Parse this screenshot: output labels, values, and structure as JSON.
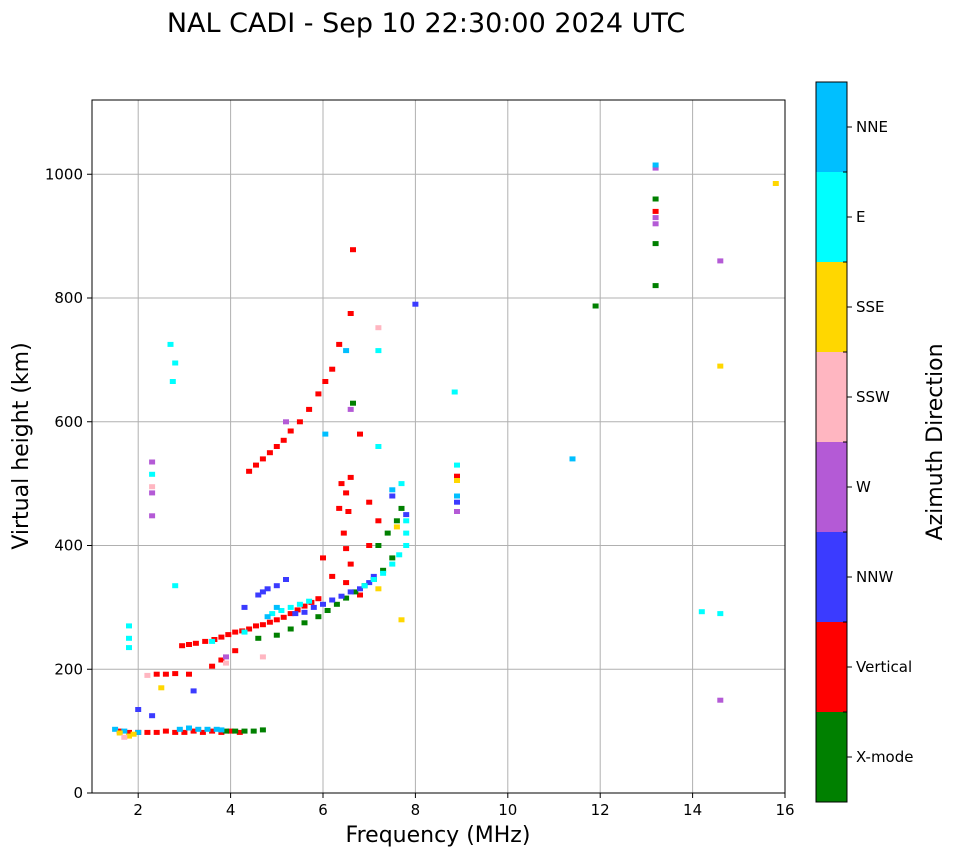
{
  "chart_data": {
    "type": "scatter",
    "title": "NAL CADI - Sep 10 22:30:00 2024 UTC",
    "xlabel": "Frequency (MHz)",
    "ylabel": "Virtual height (km)",
    "xlim": [
      1,
      16
    ],
    "ylim": [
      0,
      1120
    ],
    "xticks": [
      2,
      4,
      6,
      8,
      10,
      12,
      14,
      16
    ],
    "yticks": [
      0,
      200,
      400,
      600,
      800,
      1000
    ],
    "grid": true,
    "colorbar": {
      "title": "Azimuth Direction",
      "categories": [
        {
          "name": "X-mode",
          "color": "#008000"
        },
        {
          "name": "Vertical",
          "color": "#ff0000"
        },
        {
          "name": "NNW",
          "color": "#3b3bff"
        },
        {
          "name": "W",
          "color": "#b45ad6"
        },
        {
          "name": "SSW",
          "color": "#ffb6c1"
        },
        {
          "name": "SSE",
          "color": "#ffd700"
        },
        {
          "name": "E",
          "color": "#00ffff"
        },
        {
          "name": "NNE",
          "color": "#00bfff"
        }
      ]
    },
    "series": [
      {
        "name": "Vertical",
        "points": [
          [
            1.6,
            100
          ],
          [
            1.8,
            98
          ],
          [
            2.0,
            98
          ],
          [
            2.2,
            98
          ],
          [
            2.4,
            98
          ],
          [
            2.6,
            100
          ],
          [
            2.8,
            98
          ],
          [
            3.0,
            98
          ],
          [
            3.2,
            100
          ],
          [
            3.4,
            98
          ],
          [
            3.6,
            100
          ],
          [
            3.8,
            98
          ],
          [
            4.0,
            100
          ],
          [
            4.2,
            98
          ],
          [
            2.4,
            192
          ],
          [
            2.6,
            192
          ],
          [
            2.8,
            193
          ],
          [
            3.1,
            192
          ],
          [
            3.6,
            205
          ],
          [
            3.8,
            215
          ],
          [
            4.1,
            230
          ],
          [
            2.95,
            238
          ],
          [
            3.1,
            240
          ],
          [
            3.25,
            242
          ],
          [
            3.45,
            245
          ],
          [
            3.65,
            248
          ],
          [
            3.8,
            252
          ],
          [
            3.95,
            256
          ],
          [
            4.1,
            260
          ],
          [
            4.25,
            262
          ],
          [
            4.4,
            265
          ],
          [
            4.55,
            270
          ],
          [
            4.7,
            272
          ],
          [
            4.85,
            276
          ],
          [
            5.0,
            280
          ],
          [
            5.15,
            284
          ],
          [
            5.3,
            290
          ],
          [
            5.45,
            296
          ],
          [
            5.6,
            302
          ],
          [
            5.75,
            308
          ],
          [
            5.9,
            314
          ],
          [
            4.4,
            520
          ],
          [
            4.55,
            530
          ],
          [
            4.7,
            540
          ],
          [
            4.85,
            550
          ],
          [
            5.0,
            560
          ],
          [
            5.15,
            570
          ],
          [
            5.3,
            585
          ],
          [
            5.5,
            600
          ],
          [
            5.7,
            620
          ],
          [
            5.9,
            645
          ],
          [
            6.05,
            665
          ],
          [
            6.2,
            685
          ],
          [
            6.35,
            725
          ],
          [
            6.6,
            775
          ],
          [
            6.65,
            878
          ],
          [
            6.35,
            460
          ],
          [
            6.5,
            485
          ],
          [
            6.55,
            455
          ],
          [
            6.6,
            510
          ],
          [
            6.4,
            500
          ],
          [
            6.45,
            420
          ],
          [
            6.5,
            395
          ],
          [
            6.6,
            370
          ],
          [
            6.8,
            580
          ],
          [
            7.0,
            470
          ],
          [
            7.2,
            440
          ],
          [
            7.0,
            400
          ],
          [
            6.0,
            380
          ],
          [
            6.2,
            350
          ],
          [
            6.5,
            340
          ],
          [
            6.8,
            320
          ],
          [
            8.9,
            512
          ],
          [
            13.2,
            940
          ]
        ]
      },
      {
        "name": "X-mode",
        "points": [
          [
            3.9,
            100
          ],
          [
            4.1,
            100
          ],
          [
            4.3,
            100
          ],
          [
            4.5,
            100
          ],
          [
            4.7,
            102
          ],
          [
            4.6,
            250
          ],
          [
            5.0,
            255
          ],
          [
            5.3,
            265
          ],
          [
            5.6,
            275
          ],
          [
            5.9,
            285
          ],
          [
            6.1,
            295
          ],
          [
            6.3,
            305
          ],
          [
            6.5,
            315
          ],
          [
            6.7,
            325
          ],
          [
            6.9,
            335
          ],
          [
            7.1,
            345
          ],
          [
            7.3,
            360
          ],
          [
            7.5,
            380
          ],
          [
            7.2,
            400
          ],
          [
            7.4,
            420
          ],
          [
            7.6,
            440
          ],
          [
            7.7,
            460
          ],
          [
            6.65,
            630
          ],
          [
            11.9,
            787
          ],
          [
            13.2,
            888
          ],
          [
            13.2,
            960
          ],
          [
            13.2,
            820
          ]
        ]
      },
      {
        "name": "NNW",
        "points": [
          [
            4.6,
            320
          ],
          [
            4.7,
            325
          ],
          [
            4.8,
            330
          ],
          [
            5.0,
            335
          ],
          [
            5.2,
            345
          ],
          [
            4.3,
            300
          ],
          [
            5.4,
            290
          ],
          [
            5.6,
            292
          ],
          [
            5.8,
            300
          ],
          [
            6.0,
            305
          ],
          [
            6.2,
            312
          ],
          [
            6.4,
            318
          ],
          [
            6.6,
            325
          ],
          [
            6.8,
            330
          ],
          [
            7.0,
            340
          ],
          [
            7.1,
            350
          ],
          [
            8.0,
            790
          ],
          [
            8.9,
            470
          ],
          [
            7.5,
            480
          ],
          [
            2.0,
            135
          ],
          [
            2.3,
            125
          ],
          [
            7.8,
            450
          ],
          [
            3.2,
            165
          ]
        ]
      },
      {
        "name": "W",
        "points": [
          [
            2.3,
            535
          ],
          [
            2.3,
            485
          ],
          [
            2.3,
            448
          ],
          [
            13.2,
            1010
          ],
          [
            13.2,
            930
          ],
          [
            13.2,
            920
          ],
          [
            14.6,
            860
          ],
          [
            14.6,
            150
          ],
          [
            8.9,
            455
          ],
          [
            5.2,
            600
          ],
          [
            6.6,
            620
          ],
          [
            3.9,
            220
          ]
        ]
      },
      {
        "name": "E",
        "points": [
          [
            1.8,
            270
          ],
          [
            1.8,
            250
          ],
          [
            1.8,
            235
          ],
          [
            2.3,
            515
          ],
          [
            2.7,
            725
          ],
          [
            2.8,
            695
          ],
          [
            2.75,
            665
          ],
          [
            2.8,
            335
          ],
          [
            4.9,
            290
          ],
          [
            5.1,
            295
          ],
          [
            5.3,
            300
          ],
          [
            5.5,
            305
          ],
          [
            5.7,
            310
          ],
          [
            6.9,
            335
          ],
          [
            7.1,
            345
          ],
          [
            7.3,
            355
          ],
          [
            7.5,
            370
          ],
          [
            7.65,
            385
          ],
          [
            7.8,
            400
          ],
          [
            7.8,
            420
          ],
          [
            7.8,
            440
          ],
          [
            7.7,
            500
          ],
          [
            7.2,
            560
          ],
          [
            7.2,
            715
          ],
          [
            8.9,
            530
          ],
          [
            8.85,
            648
          ],
          [
            14.2,
            293
          ],
          [
            14.6,
            290
          ],
          [
            3.6,
            245
          ],
          [
            4.3,
            260
          ]
        ]
      },
      {
        "name": "NNE",
        "points": [
          [
            1.5,
            103
          ],
          [
            1.7,
            100
          ],
          [
            2.0,
            98
          ],
          [
            2.9,
            103
          ],
          [
            3.1,
            105
          ],
          [
            3.3,
            103
          ],
          [
            3.5,
            103
          ],
          [
            3.7,
            103
          ],
          [
            3.8,
            102
          ],
          [
            7.5,
            490
          ],
          [
            8.9,
            480
          ],
          [
            11.4,
            540
          ],
          [
            4.8,
            285
          ],
          [
            5.0,
            300
          ],
          [
            6.05,
            580
          ],
          [
            6.5,
            715
          ],
          [
            13.2,
            1015
          ]
        ]
      },
      {
        "name": "SSE",
        "points": [
          [
            1.6,
            97
          ],
          [
            1.9,
            95
          ],
          [
            1.8,
            92
          ],
          [
            7.2,
            330
          ],
          [
            7.7,
            280
          ],
          [
            7.6,
            430
          ],
          [
            14.6,
            690
          ],
          [
            15.8,
            985
          ],
          [
            2.5,
            170
          ],
          [
            8.9,
            505
          ]
        ]
      },
      {
        "name": "SSW",
        "points": [
          [
            1.7,
            90
          ],
          [
            2.3,
            495
          ],
          [
            4.7,
            220
          ],
          [
            7.2,
            752
          ],
          [
            2.2,
            190
          ],
          [
            3.9,
            210
          ]
        ]
      }
    ]
  }
}
